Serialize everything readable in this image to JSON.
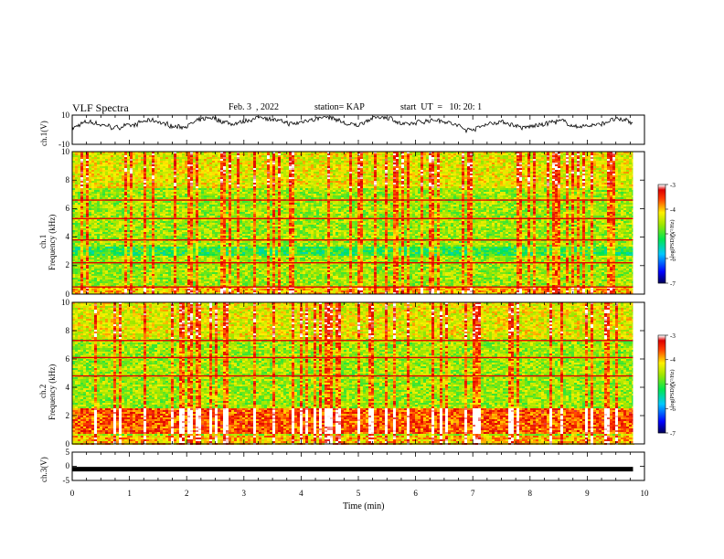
{
  "header": {
    "title": "VLF Spectra",
    "date": "Feb. 3  , 2022",
    "station": "station= KAP",
    "start": "start  UT  =   10: 20: 1"
  },
  "chart_data": [
    {
      "type": "line",
      "panel": "ch1-waveform",
      "ylabel": "ch.1(V)",
      "xlim": [
        0,
        10
      ],
      "ylim": [
        -10,
        10
      ],
      "yticks": [
        "10",
        "-10"
      ],
      "series": [
        {
          "color": "#000000",
          "trend": "noisy waveform oscillating between about -5 and 8 V"
        }
      ]
    },
    {
      "type": "heatmap",
      "panel": "ch1-spectrogram",
      "ylabel_line1": "ch.1",
      "ylabel_line2": "Frequency  (kHz)",
      "xlim": [
        0,
        10
      ],
      "ylim": [
        0,
        10
      ],
      "yticks": [
        "10",
        "8",
        "6",
        "4",
        "2",
        "0"
      ],
      "data_end_min": 9.8,
      "narrowband_lines_khz": [
        6.6,
        5.3,
        3.8,
        2.2,
        0.5
      ],
      "quiet_band_khz": [
        2.7,
        3.4
      ],
      "colorbar": {
        "label": "log(PSD)(V²/Hz)",
        "range": [
          -7,
          -3
        ],
        "ticks": [
          "-3",
          "-4",
          "-5",
          "-6",
          "-7"
        ]
      }
    },
    {
      "type": "heatmap",
      "panel": "ch2-spectrogram",
      "ylabel_line1": "ch.2",
      "ylabel_line2": "Frequency  (kHz)",
      "xlim": [
        0,
        10
      ],
      "ylim": [
        0,
        10
      ],
      "yticks": [
        "10",
        "8",
        "6",
        "4",
        "2",
        "0"
      ],
      "data_end_min": 9.8,
      "narrowband_lines_khz": [
        7.3,
        6.1,
        4.8
      ],
      "strong_band_khz": [
        0.8,
        2.6
      ],
      "colorbar": {
        "label": "log(PSD)(V²/Hz)",
        "range": [
          -7,
          -3
        ],
        "ticks": [
          "-3",
          "-4",
          "-5",
          "-6",
          "-7"
        ]
      }
    },
    {
      "type": "line",
      "panel": "ch3-waveform",
      "ylabel": "ch.3(V)",
      "xlim": [
        0,
        10
      ],
      "ylim": [
        -5,
        5
      ],
      "yticks": [
        "5",
        "0",
        "-5"
      ],
      "series": [
        {
          "color": "#000000",
          "trend": "thick flat trace near -1 V"
        }
      ]
    }
  ],
  "xaxis": {
    "label": "Time  (min)",
    "ticks": [
      "0",
      "1",
      "2",
      "3",
      "4",
      "5",
      "6",
      "7",
      "8",
      "9",
      "10"
    ]
  }
}
